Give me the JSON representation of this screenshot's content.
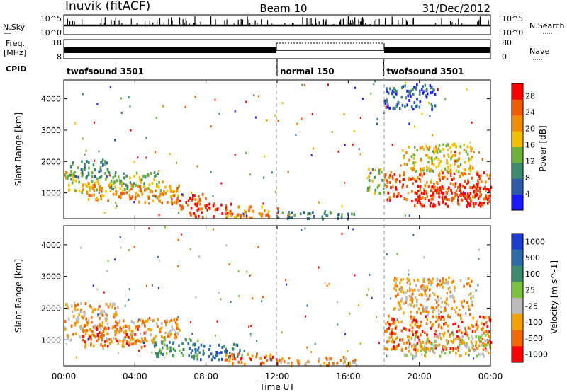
{
  "header": {
    "station": "Inuvik (fitACF)",
    "beam": "Beam 10",
    "date": "31/Dec/2012"
  },
  "top_panels": {
    "nsky_label": "N.Sky",
    "nsky_ticks": [
      "10^5",
      "10^0"
    ],
    "nsearch_label": "N.Search",
    "nsearch_ticks": [
      "10^5",
      "10^0"
    ],
    "freq_label_1": "Freq.",
    "freq_label_2": "[MHz]",
    "freq_ticks": [
      "18",
      "8"
    ],
    "nave_label": "Nave",
    "nave_ticks": [
      "80",
      "0"
    ],
    "cpid_label": "CPID",
    "cpid_segments": [
      {
        "label": "twofsound 3501",
        "start_hour": 0,
        "end_hour": 12
      },
      {
        "label": "normal 150",
        "start_hour": 12,
        "end_hour": 18
      },
      {
        "label": "twofsound 3501",
        "start_hour": 18,
        "end_hour": 24
      }
    ]
  },
  "x_axis": {
    "label": "Time UT",
    "ticks": [
      "00:00",
      "04:00",
      "08:00",
      "12:00",
      "16:00",
      "20:00",
      "00:00"
    ],
    "tick_hours": [
      0,
      4,
      8,
      12,
      16,
      20,
      24
    ]
  },
  "chart_data": [
    {
      "type": "heatmap",
      "quantity": "power",
      "ylabel": "Slant Range [km]",
      "yticks": [
        "1000",
        "2000",
        "3000",
        "4000"
      ],
      "ytick_values": [
        1000,
        2000,
        3000,
        4000
      ],
      "ylim": [
        180,
        4600
      ],
      "xlim_hours": [
        0,
        24
      ],
      "colorbar_label": "Power [dB]",
      "colorbar_ticks": [
        "4",
        "8",
        "12",
        "16",
        "20",
        "24",
        "28"
      ],
      "colorbar_tick_values": [
        4,
        8,
        12,
        16,
        20,
        24,
        28
      ],
      "colorbar_range": [
        0,
        31
      ],
      "colors": [
        "#1a1aff",
        "#2c5aa8",
        "#3c8a6c",
        "#6eb03c",
        "#f0c000",
        "#f08c00",
        "#f05a00",
        "#ff0000"
      ],
      "bands": [
        {
          "t": [
            0.0,
            2.0
          ],
          "r": [
            1000,
            1700
          ],
          "level": 4
        },
        {
          "t": [
            0.3,
            2.5
          ],
          "r": [
            1450,
            2100
          ],
          "level": 2
        },
        {
          "t": [
            1.0,
            4.0
          ],
          "r": [
            800,
            1300
          ],
          "level": 5
        },
        {
          "t": [
            2.5,
            5.5
          ],
          "r": [
            1100,
            1700
          ],
          "level": 3
        },
        {
          "t": [
            4.0,
            6.5
          ],
          "r": [
            700,
            1400
          ],
          "level": 5
        },
        {
          "t": [
            6.0,
            8.0
          ],
          "r": [
            500,
            1000
          ],
          "level": 6
        },
        {
          "t": [
            7.0,
            9.5
          ],
          "r": [
            250,
            700
          ],
          "level": 7
        },
        {
          "t": [
            9.0,
            12.0
          ],
          "r": [
            250,
            600
          ],
          "level": 5
        },
        {
          "t": [
            12.0,
            16.5
          ],
          "r": [
            200,
            450
          ],
          "level": 2
        },
        {
          "t": [
            17.0,
            18.0
          ],
          "r": [
            1000,
            1800
          ],
          "level": 3
        },
        {
          "t": [
            18.0,
            24.0
          ],
          "r": [
            800,
            1700
          ],
          "level": 6
        },
        {
          "t": [
            19.5,
            24.0
          ],
          "r": [
            600,
            1300
          ],
          "level": 7
        },
        {
          "t": [
            19.0,
            23.0
          ],
          "r": [
            1700,
            2600
          ],
          "level": 4
        },
        {
          "t": [
            18.0,
            21.0
          ],
          "r": [
            3700,
            4500
          ],
          "level": 1
        }
      ]
    },
    {
      "type": "heatmap",
      "quantity": "velocity",
      "ylabel": "Slant Range [km]",
      "yticks": [
        "1000",
        "2000",
        "3000",
        "4000"
      ],
      "ytick_values": [
        1000,
        2000,
        3000,
        4000
      ],
      "ylim": [
        180,
        4600
      ],
      "xlim_hours": [
        0,
        24
      ],
      "colorbar_label": "Velocity [m s^-1]",
      "colorbar_ticks": [
        "1000",
        "500",
        "100",
        "25",
        "-25",
        "-100",
        "-500",
        "-1000"
      ],
      "colors": [
        "#1a3ccc",
        "#2c6aa8",
        "#3c8a6c",
        "#7ec040",
        "#bbbbbb",
        "#f0a000",
        "#f06a00",
        "#ff0000"
      ],
      "bands": [
        {
          "t": [
            0.0,
            3.0
          ],
          "r": [
            1000,
            2200
          ],
          "level": 5
        },
        {
          "t": [
            1.0,
            4.5
          ],
          "r": [
            800,
            1500
          ],
          "level": 6
        },
        {
          "t": [
            3.0,
            6.5
          ],
          "r": [
            900,
            1700
          ],
          "level": 5
        },
        {
          "t": [
            5.0,
            7.5
          ],
          "r": [
            500,
            1100
          ],
          "level": 2
        },
        {
          "t": [
            7.0,
            10.0
          ],
          "r": [
            400,
            900
          ],
          "level": 1
        },
        {
          "t": [
            9.0,
            12.0
          ],
          "r": [
            250,
            600
          ],
          "level": 6
        },
        {
          "t": [
            12.0,
            16.5
          ],
          "r": [
            200,
            500
          ],
          "level": 5
        },
        {
          "t": [
            18.0,
            24.0
          ],
          "r": [
            700,
            1800
          ],
          "level": 6
        },
        {
          "t": [
            19.0,
            24.0
          ],
          "r": [
            500,
            1200
          ],
          "level": 4
        },
        {
          "t": [
            18.5,
            23.0
          ],
          "r": [
            1800,
            3000
          ],
          "level": 5
        }
      ]
    }
  ]
}
